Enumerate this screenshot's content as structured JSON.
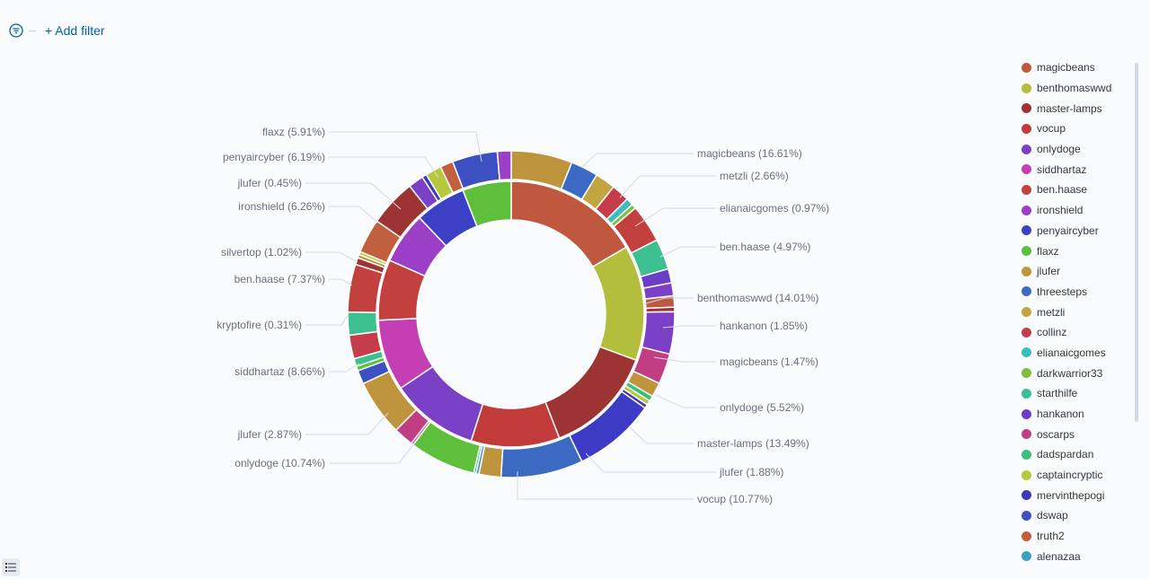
{
  "filter_bar": {
    "add_filter_label": "+ Add filter"
  },
  "legend": [
    {
      "label": "magicbeans",
      "color": "#c0583f"
    },
    {
      "label": "benthomaswwd",
      "color": "#b3be3d"
    },
    {
      "label": "master-lamps",
      "color": "#9c3434"
    },
    {
      "label": "vocup",
      "color": "#c23b3b"
    },
    {
      "label": "onlydoge",
      "color": "#7a40c6"
    },
    {
      "label": "siddhartaz",
      "color": "#c43fb3"
    },
    {
      "label": "ben.haase",
      "color": "#c2413e"
    },
    {
      "label": "ironshield",
      "color": "#9a3fc6"
    },
    {
      "label": "penyaircyber",
      "color": "#3c40c4"
    },
    {
      "label": "flaxz",
      "color": "#5dbf3c"
    },
    {
      "label": "jlufer",
      "color": "#be943c"
    },
    {
      "label": "threesteps",
      "color": "#3c6ac3"
    },
    {
      "label": "metzli",
      "color": "#c3a43f"
    },
    {
      "label": "collinz",
      "color": "#c53d4b"
    },
    {
      "label": "elianaicgomes",
      "color": "#3cbfbc"
    },
    {
      "label": "darkwarrior33",
      "color": "#80bf3d"
    },
    {
      "label": "starthilfe",
      "color": "#3cc091"
    },
    {
      "label": "hankanon",
      "color": "#6a3ec6"
    },
    {
      "label": "oscarps",
      "color": "#c13e83"
    },
    {
      "label": "dadspardan",
      "color": "#3cbf7d"
    },
    {
      "label": "captaincryptic",
      "color": "#b6c83d"
    },
    {
      "label": "mervinthepogi",
      "color": "#3d3bb3"
    },
    {
      "label": "dswap",
      "color": "#3d50c2"
    },
    {
      "label": "truth2",
      "color": "#c1603f"
    },
    {
      "label": "alenazaa",
      "color": "#3e9fc0"
    }
  ],
  "chart_data": {
    "type": "pie",
    "subtype": "nested-donut",
    "inner_ring": [
      {
        "name": "magicbeans",
        "value": 16.61,
        "color": "#c0583f"
      },
      {
        "name": "benthomaswwd",
        "value": 14.01,
        "color": "#b3be3d"
      },
      {
        "name": "master-lamps",
        "value": 13.49,
        "color": "#9c3434"
      },
      {
        "name": "vocup",
        "value": 10.77,
        "color": "#c23b3b"
      },
      {
        "name": "onlydoge",
        "value": 10.74,
        "color": "#7a40c6"
      },
      {
        "name": "siddhartaz",
        "value": 8.66,
        "color": "#c43fb3"
      },
      {
        "name": "ben.haase",
        "value": 7.37,
        "color": "#c2413e"
      },
      {
        "name": "ironshield",
        "value": 6.26,
        "color": "#9a3fc6"
      },
      {
        "name": "penyaircyber",
        "value": 6.19,
        "color": "#3c40c4"
      },
      {
        "name": "flaxz",
        "value": 5.91,
        "color": "#5dbf3c"
      }
    ],
    "outer_ring": [
      {
        "name": "jlufer",
        "value": 8.0,
        "color": "#be943c"
      },
      {
        "name": "threesteps",
        "value": 3.6,
        "color": "#3c6ac3"
      },
      {
        "name": "metzli",
        "value": 2.66,
        "color": "#c3a43f"
      },
      {
        "name": "collinz",
        "value": 2.35,
        "color": "#c53d4b"
      },
      {
        "name": "elianaicgomes",
        "value": 0.97,
        "color": "#3cbfbc"
      },
      {
        "name": "darkwarrior33",
        "value": 0.6,
        "color": "#80bf3d"
      },
      {
        "name": "ben.haase",
        "value": 4.97,
        "color": "#c2413e"
      },
      {
        "name": "starthilfe",
        "value": 4.0,
        "color": "#3cc091"
      },
      {
        "name": "hankanon",
        "value": 1.85,
        "color": "#6a3ec6"
      },
      {
        "name": "onlydoge",
        "value": 1.7,
        "color": "#7a40c6"
      },
      {
        "name": "magicbeans",
        "value": 1.47,
        "color": "#c0583f"
      },
      {
        "name": "master-lamps",
        "value": 0.6,
        "color": "#9c3434"
      },
      {
        "name": "onlydoge",
        "value": 5.52,
        "color": "#7a40c6"
      },
      {
        "name": "oscarps",
        "value": 4.0,
        "color": "#c13e83"
      },
      {
        "name": "jlufer",
        "value": 1.88,
        "color": "#be943c"
      },
      {
        "name": "dadspardan",
        "value": 0.7,
        "color": "#3cbf7d"
      },
      {
        "name": "captaincryptic",
        "value": 0.6,
        "color": "#b6c83d"
      },
      {
        "name": "mervinthepogi",
        "value": 0.5,
        "color": "#3d3bb3"
      },
      {
        "name": "vocup",
        "value": 10.77,
        "color": "#3d3bc6"
      },
      {
        "name": "onlydoge",
        "value": 10.74,
        "color": "#3c6ac3"
      },
      {
        "name": "jlufer",
        "value": 2.87,
        "color": "#be943c"
      },
      {
        "name": "alenazaa",
        "value": 0.4,
        "color": "#3e9fc0"
      },
      {
        "name": "dadspardan",
        "value": 0.3,
        "color": "#3cbf7d"
      },
      {
        "name": "siddhartaz",
        "value": 8.66,
        "color": "#5dbf3c"
      },
      {
        "name": "kryptofire",
        "value": 0.31,
        "color": "#c13e83"
      },
      {
        "name": "oscarps",
        "value": 2.6,
        "color": "#c13e83"
      },
      {
        "name": "ben.haase",
        "value": 7.37,
        "color": "#be943c"
      },
      {
        "name": "penyaircyber",
        "value": 1.8,
        "color": "#3d50c2"
      },
      {
        "name": "darkwarrior33",
        "value": 0.6,
        "color": "#5dbf3c"
      },
      {
        "name": "silvertop",
        "value": 1.02,
        "color": "#3cc091"
      },
      {
        "name": "collinz",
        "value": 3.1,
        "color": "#c53d4b"
      },
      {
        "name": "starthilfe",
        "value": 3.0,
        "color": "#3cc091"
      },
      {
        "name": "ironshield",
        "value": 6.26,
        "color": "#c2413e"
      },
      {
        "name": "master-lamps",
        "value": 0.9,
        "color": "#9c3434"
      },
      {
        "name": "jlufer",
        "value": 0.45,
        "color": "#be943c"
      },
      {
        "name": "captaincryptic",
        "value": 0.4,
        "color": "#b6c83d"
      },
      {
        "name": "truth2",
        "value": 4.5,
        "color": "#c1603f"
      },
      {
        "name": "penyaircyber",
        "value": 6.19,
        "color": "#9c3434"
      },
      {
        "name": "onlydoge",
        "value": 2.0,
        "color": "#7a40c6"
      },
      {
        "name": "mervinthepogi",
        "value": 0.6,
        "color": "#3d3bb3"
      },
      {
        "name": "captaincryptic",
        "value": 2.1,
        "color": "#b6c83d"
      },
      {
        "name": "truth2",
        "value": 1.7,
        "color": "#c1603f"
      },
      {
        "name": "flaxz",
        "value": 5.91,
        "color": "#3d50c2"
      },
      {
        "name": "ironshield",
        "value": 1.8,
        "color": "#9a3fc6"
      }
    ],
    "labels": [
      {
        "text": "magicbeans (16.61%)",
        "side": "right"
      },
      {
        "text": "metzli (2.66%)",
        "side": "right"
      },
      {
        "text": "elianaicgomes (0.97%)",
        "side": "right"
      },
      {
        "text": "ben.haase (4.97%)",
        "side": "right"
      },
      {
        "text": "benthomaswwd (14.01%)",
        "side": "right"
      },
      {
        "text": "hankanon (1.85%)",
        "side": "right"
      },
      {
        "text": "magicbeans (1.47%)",
        "side": "right"
      },
      {
        "text": "onlydoge (5.52%)",
        "side": "right"
      },
      {
        "text": "master-lamps (13.49%)",
        "side": "right"
      },
      {
        "text": "jlufer (1.88%)",
        "side": "right"
      },
      {
        "text": "vocup (10.77%)",
        "side": "right"
      },
      {
        "text": "flaxz (5.91%)",
        "side": "left"
      },
      {
        "text": "penyaircyber (6.19%)",
        "side": "left"
      },
      {
        "text": "jlufer (0.45%)",
        "side": "left"
      },
      {
        "text": "ironshield (6.26%)",
        "side": "left"
      },
      {
        "text": "silvertop (1.02%)",
        "side": "left"
      },
      {
        "text": "ben.haase (7.37%)",
        "side": "left"
      },
      {
        "text": "kryptofire (0.31%)",
        "side": "left"
      },
      {
        "text": "siddhartaz (8.66%)",
        "side": "left"
      },
      {
        "text": "jlufer (2.87%)",
        "side": "left"
      },
      {
        "text": "onlydoge (10.74%)",
        "side": "left"
      }
    ],
    "legend_placement": "right"
  }
}
